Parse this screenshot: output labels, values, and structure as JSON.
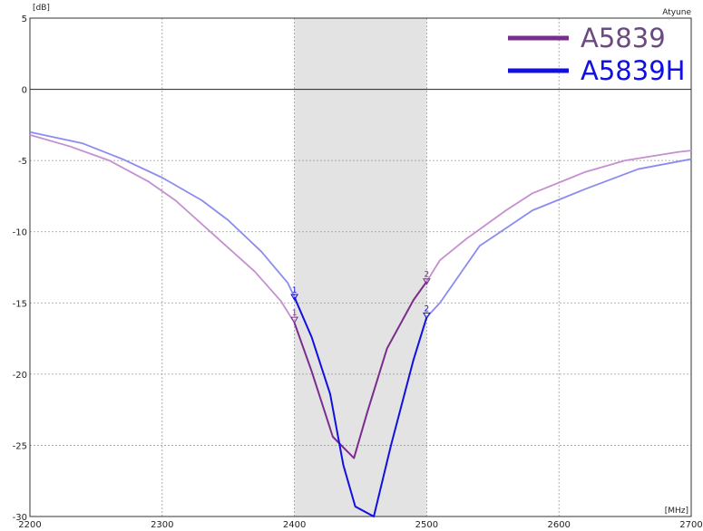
{
  "chart_data": {
    "type": "line",
    "xlabel_unit": "[MHz]",
    "ylabel_unit": "[dB]",
    "brand": "Atyune",
    "xlim": [
      2200,
      2700
    ],
    "ylim": [
      -30,
      5
    ],
    "x_ticks": [
      2200,
      2300,
      2400,
      2500,
      2600,
      2700
    ],
    "y_ticks": [
      5,
      0,
      -5,
      -10,
      -15,
      -20,
      -25,
      -30
    ],
    "x_tick_labels": [
      "2200",
      "2300",
      "2400",
      "2500",
      "2600",
      "2700"
    ],
    "y_tick_labels": [
      "5",
      "0",
      "-5",
      "-10",
      "-15",
      "-20",
      "-25",
      "-30"
    ],
    "highlight_band": [
      2400,
      2500
    ],
    "grid": true,
    "legend_position": "top-right",
    "series": [
      {
        "name": "A5839",
        "color": "#7B2D8E",
        "out_of_band_color": "#C58FD0",
        "legend_color": "#6B4A80",
        "x": [
          2200,
          2230,
          2260,
          2290,
          2310,
          2340,
          2370,
          2390,
          2400,
          2413,
          2429,
          2445,
          2455,
          2470,
          2490,
          2500,
          2510,
          2530,
          2560,
          2580,
          2620,
          2650,
          2690,
          2700
        ],
        "values": [
          -3.2,
          -4.0,
          -5.0,
          -6.5,
          -7.8,
          -10.3,
          -12.8,
          -14.9,
          -16.4,
          -19.8,
          -24.4,
          -25.9,
          -22.7,
          -18.2,
          -14.8,
          -13.5,
          -12.0,
          -10.5,
          -8.5,
          -7.3,
          -5.8,
          -5.0,
          -4.4,
          -4.3
        ],
        "markers": [
          {
            "label": "1",
            "x": 2400,
            "y": -16.2
          },
          {
            "label": "2",
            "x": 2500,
            "y": -13.5
          }
        ]
      },
      {
        "name": "A5839H",
        "color": "#1010E0",
        "out_of_band_color": "#8C8CF0",
        "legend_color": "#1010E0",
        "x": [
          2200,
          2240,
          2270,
          2300,
          2330,
          2350,
          2375,
          2395,
          2400,
          2413,
          2427,
          2437,
          2446,
          2460,
          2473,
          2490,
          2500,
          2510,
          2540,
          2580,
          2620,
          2660,
          2700
        ],
        "values": [
          -3.0,
          -3.8,
          -4.9,
          -6.2,
          -7.8,
          -9.2,
          -11.4,
          -13.6,
          -14.6,
          -17.4,
          -21.4,
          -26.4,
          -29.3,
          -30.0,
          -25.0,
          -19.0,
          -16.0,
          -15.0,
          -11.0,
          -8.5,
          -7.0,
          -5.6,
          -4.9
        ],
        "markers": [
          {
            "label": "1",
            "x": 2400,
            "y": -14.6
          },
          {
            "label": "2",
            "x": 2500,
            "y": -15.9
          }
        ]
      }
    ]
  }
}
